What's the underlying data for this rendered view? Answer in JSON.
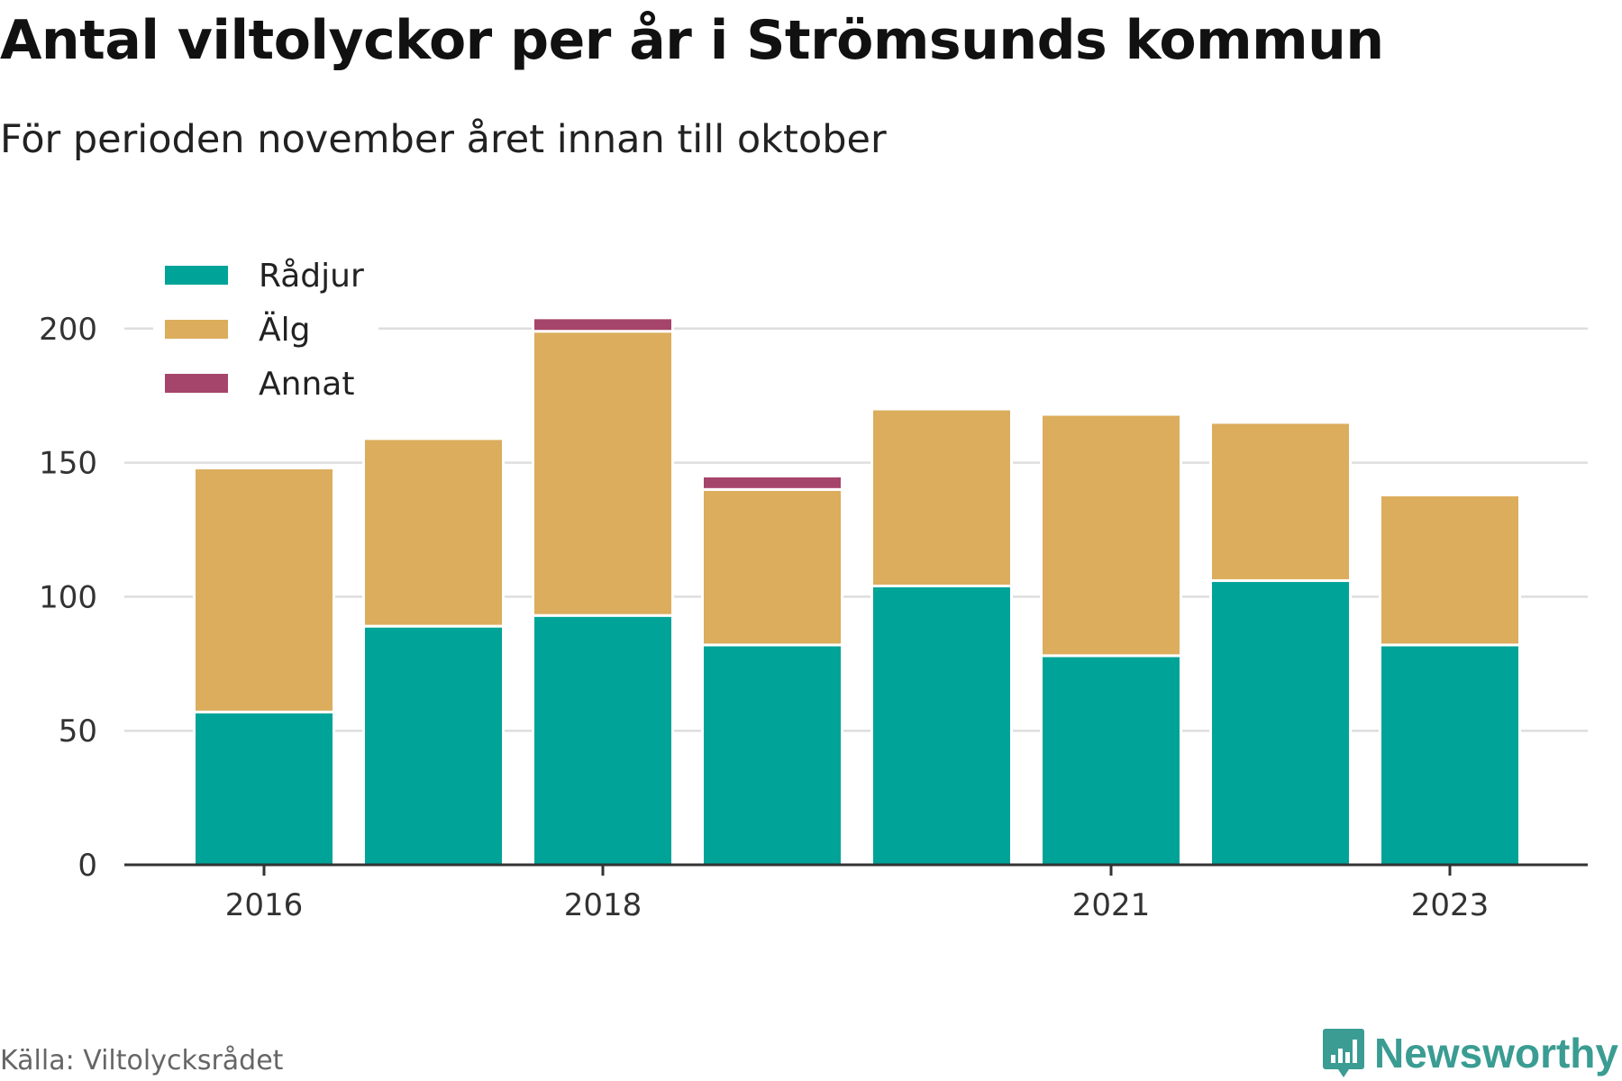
{
  "header": {
    "title": "Antal viltolyckor per år i Strömsunds kommun",
    "subtitle": "För perioden november året innan till oktober"
  },
  "footer": {
    "source": "Källa: Viltolycksrådet",
    "brand": "Newsworthy",
    "brand_icon": "bar-chart-speech-bubble-icon"
  },
  "chart_data": {
    "type": "bar",
    "stacked": true,
    "categories": [
      "2016",
      "2017",
      "2018",
      "2019",
      "2020",
      "2021",
      "2022",
      "2023"
    ],
    "x_tick_labels": [
      "2016",
      "",
      "2018",
      "",
      "",
      "2021",
      "",
      "2023"
    ],
    "series": [
      {
        "name": "Rådjur",
        "color": "#00a398",
        "values": [
          57,
          89,
          93,
          82,
          104,
          78,
          106,
          82
        ]
      },
      {
        "name": "Älg",
        "color": "#dbad5c",
        "values": [
          91,
          70,
          106,
          58,
          66,
          90,
          59,
          56
        ]
      },
      {
        "name": "Annat",
        "color": "#a6456b",
        "values": [
          0,
          1,
          5,
          5,
          0,
          0,
          0,
          1
        ]
      }
    ],
    "ylim": [
      0,
      210
    ],
    "yticks": [
      0,
      50,
      100,
      150,
      200
    ],
    "xlabel": "",
    "ylabel": "",
    "grid": true,
    "legend_position": "top-left"
  }
}
